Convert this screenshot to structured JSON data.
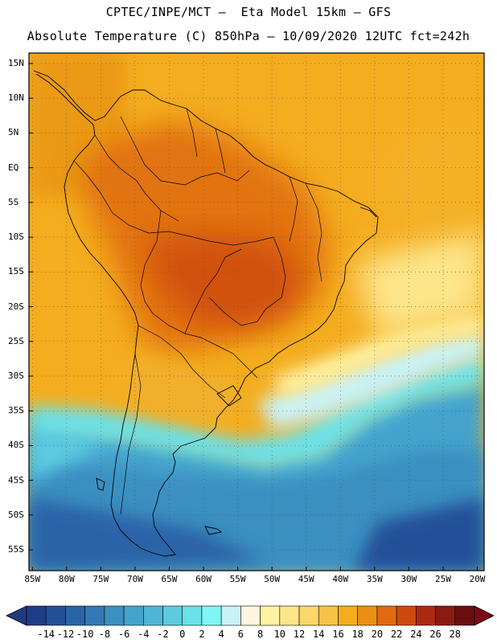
{
  "header": {
    "line1": "CPTEC/INPE/MCT –  Eta Model 15km – GFS",
    "line2": "Absolute Temperature (C) 850hPa – 10/09/2020 12UTC fct=242h"
  },
  "map": {
    "region": "South America",
    "lat_labels": [
      "15N",
      "10N",
      "5N",
      "EQ",
      "5S",
      "10S",
      "15S",
      "20S",
      "25S",
      "30S",
      "35S",
      "40S",
      "45S",
      "50S",
      "55S"
    ],
    "lat_values": [
      15,
      10,
      5,
      0,
      -5,
      -10,
      -15,
      -20,
      -25,
      -30,
      -35,
      -40,
      -45,
      -50,
      -55
    ],
    "lon_labels": [
      "85W",
      "80W",
      "75W",
      "70W",
      "65W",
      "60W",
      "55W",
      "50W",
      "45W",
      "40W",
      "35W",
      "30W",
      "25W",
      "20W"
    ],
    "lon_values": [
      -85,
      -80,
      -75,
      -70,
      -65,
      -60,
      -55,
      -50,
      -45,
      -40,
      -35,
      -30,
      -25,
      -20
    ],
    "lat_range": [
      -58,
      16.5
    ],
    "lon_range": [
      -85.5,
      -19
    ],
    "grid": "dotted"
  },
  "colorbar": {
    "labels": [
      "-14",
      "-12",
      "-10",
      "-8",
      "-6",
      "-4",
      "-2",
      "0",
      "2",
      "4",
      "6",
      "8",
      "10",
      "12",
      "14",
      "16",
      "18",
      "20",
      "22",
      "24",
      "26",
      "28"
    ],
    "colors": [
      "#1f3c86",
      "#234f99",
      "#2a64a8",
      "#3478b5",
      "#3b8fc1",
      "#45a3cc",
      "#4fb6d6",
      "#5ccbe0",
      "#6be2ea",
      "#7ff7f6",
      "#c8f2f7",
      "#fff6dd",
      "#fff2a0",
      "#fde58a",
      "#fbd66b",
      "#f8c24a",
      "#f4ad1f",
      "#ea8e14",
      "#e06a10",
      "#cd4a0f",
      "#ac2a10",
      "#8a1a12",
      "#6a0f12"
    ],
    "under_color": "#203a80",
    "over_color": "#7a0c18"
  }
}
